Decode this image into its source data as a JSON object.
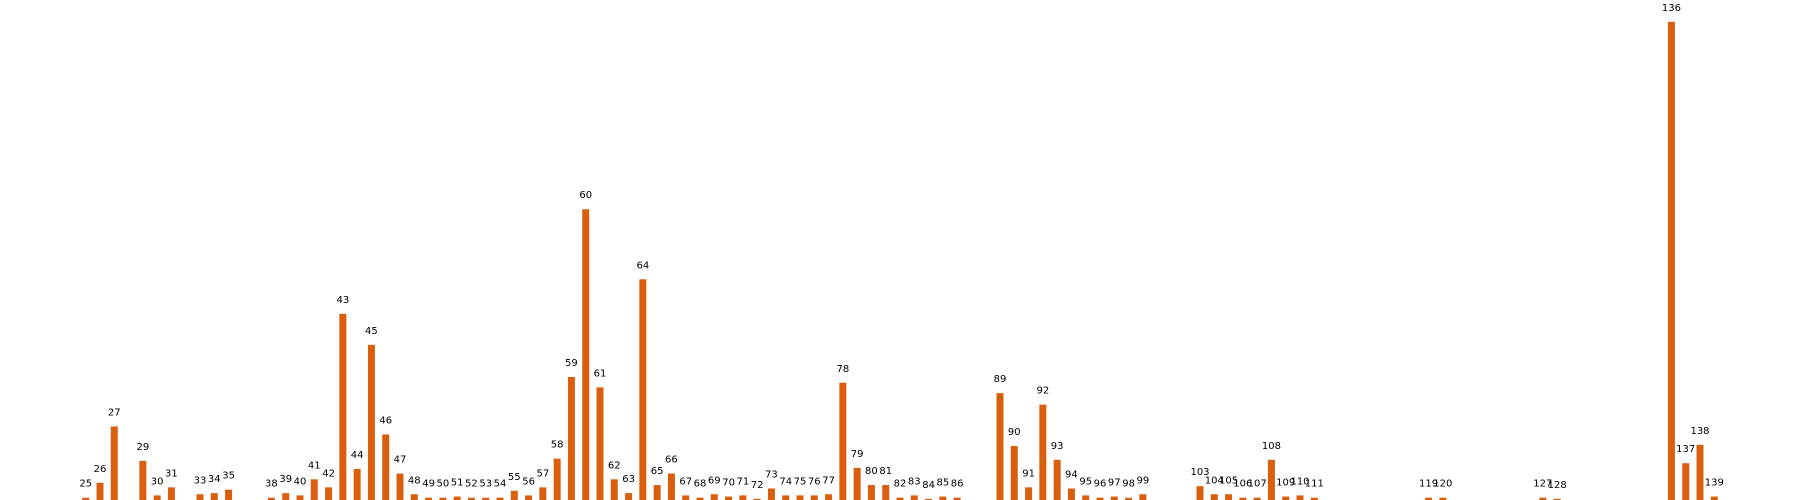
{
  "chart_data": {
    "type": "bar",
    "color": "#d95f0e",
    "x": [
      25,
      26,
      27,
      29,
      30,
      31,
      33,
      34,
      35,
      38,
      39,
      40,
      41,
      42,
      43,
      44,
      45,
      46,
      47,
      48,
      49,
      50,
      51,
      52,
      53,
      54,
      55,
      56,
      57,
      58,
      59,
      60,
      61,
      62,
      63,
      64,
      65,
      66,
      67,
      68,
      69,
      70,
      71,
      72,
      73,
      74,
      75,
      76,
      77,
      78,
      79,
      80,
      81,
      82,
      83,
      84,
      85,
      86,
      89,
      90,
      91,
      92,
      93,
      94,
      95,
      96,
      97,
      98,
      99,
      103,
      104,
      105,
      106,
      107,
      108,
      109,
      110,
      111,
      119,
      120,
      127,
      128,
      136,
      137,
      138,
      139
    ],
    "values": [
      2,
      15,
      64,
      34,
      4,
      11,
      5,
      6,
      9,
      2,
      6,
      4,
      18,
      11,
      162,
      27,
      135,
      57,
      23,
      5,
      2,
      2,
      3,
      2,
      2,
      2,
      8,
      4,
      11,
      36,
      107,
      253,
      98,
      18,
      6,
      192,
      13,
      23,
      4,
      2,
      5,
      3,
      4,
      1,
      10,
      4,
      4,
      4,
      5,
      102,
      28,
      13,
      13,
      2,
      4,
      1,
      3,
      2,
      93,
      47,
      11,
      83,
      35,
      10,
      4,
      2,
      3,
      2,
      5,
      12,
      5,
      5,
      2,
      2,
      35,
      3,
      4,
      2,
      2,
      2,
      2,
      1,
      416,
      32,
      48,
      3
    ],
    "xlim": [
      19,
      145
    ],
    "ylim": [
      0,
      435
    ]
  }
}
